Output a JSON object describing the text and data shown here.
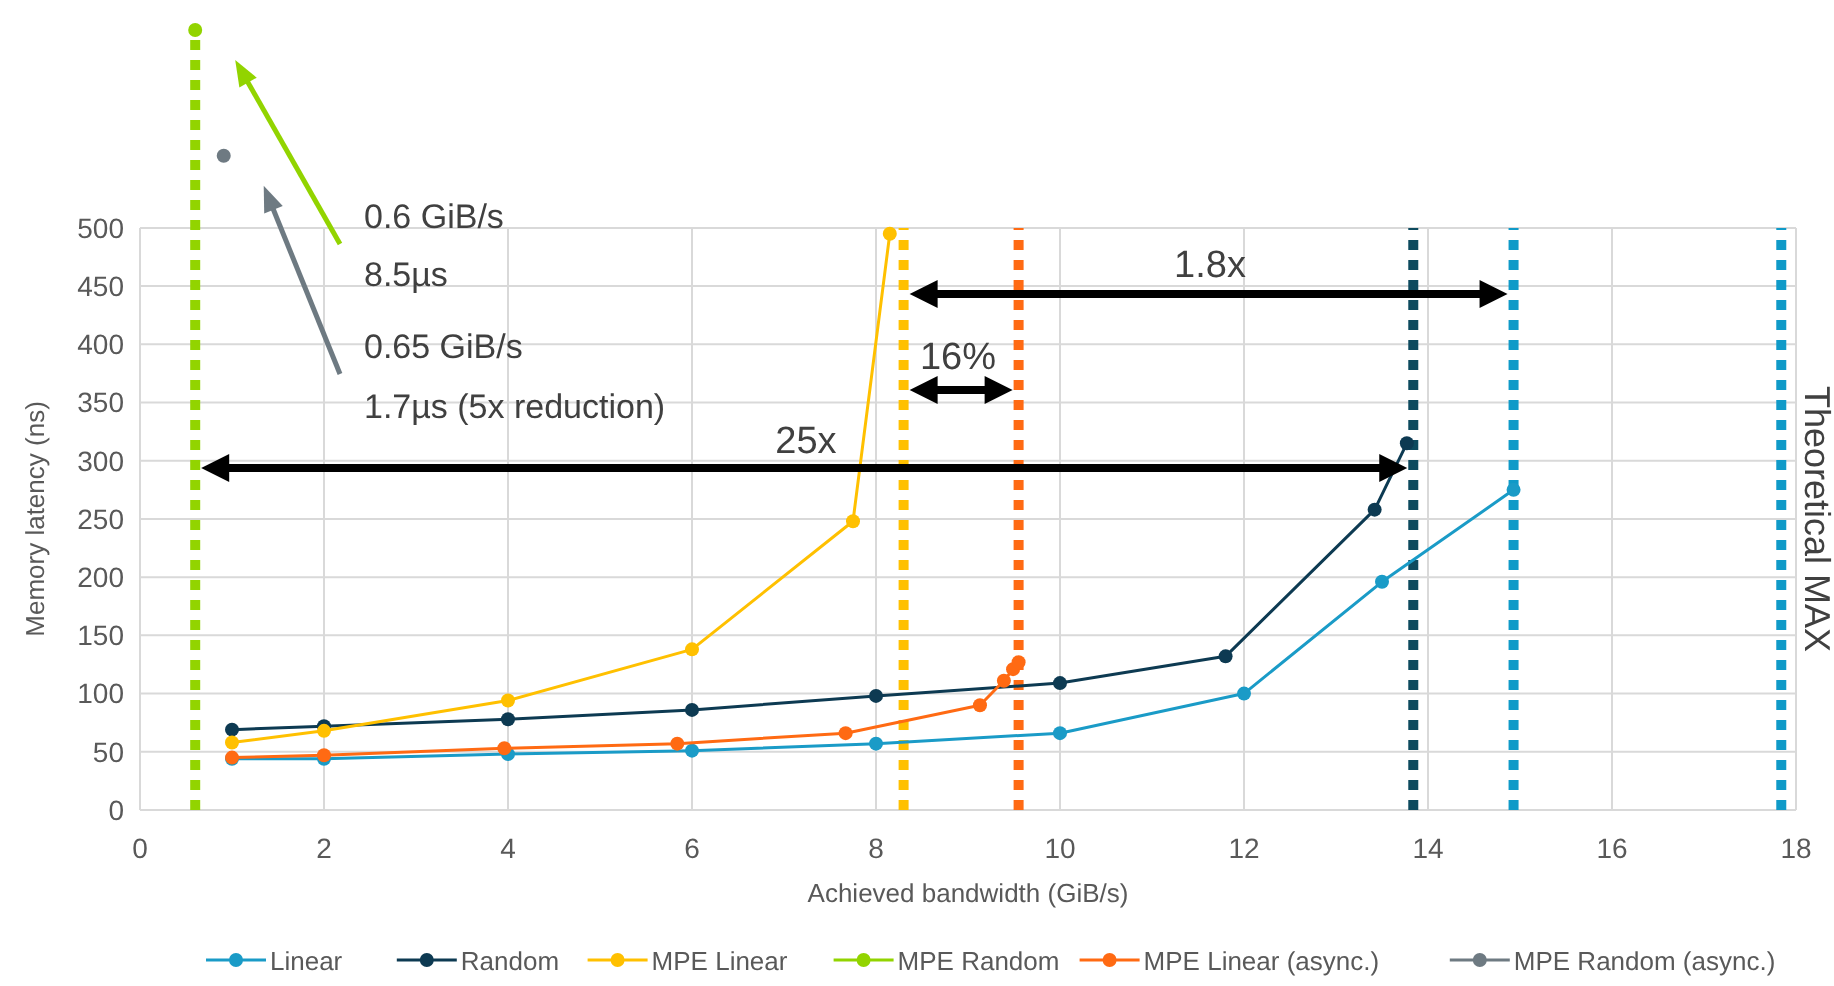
{
  "chart_data": {
    "type": "line",
    "xlabel": "Achieved bandwidth (GiB/s)",
    "ylabel": "Memory latency (ns)",
    "xlim": [
      0,
      18
    ],
    "xticks": [
      0,
      2,
      4,
      6,
      8,
      10,
      12,
      14,
      16,
      18
    ],
    "ylim": [
      0,
      670
    ],
    "yticks": [
      0,
      50,
      100,
      150,
      200,
      250,
      300,
      350,
      400,
      450,
      500
    ],
    "grid": true,
    "legend": "bottom",
    "marker": "circle",
    "line_style": "solid",
    "series": [
      {
        "name": "Linear",
        "color": "#1a9bc7",
        "x": [
          1,
          2,
          4,
          6,
          8,
          10,
          12,
          13.5,
          14.93
        ],
        "values": [
          44,
          44,
          48,
          51,
          57,
          66,
          100,
          196,
          275
        ]
      },
      {
        "name": "Random",
        "color": "#0d3a52",
        "x": [
          1,
          2,
          4,
          6,
          8,
          10,
          11.8,
          13.42,
          13.77
        ],
        "values": [
          69,
          72,
          78,
          86,
          98,
          109,
          132,
          258,
          315
        ]
      },
      {
        "name": "MPE Linear",
        "color": "#ffc000",
        "x": [
          1,
          2,
          4,
          6,
          7.75,
          8.15
        ],
        "values": [
          58,
          68,
          94,
          138,
          248,
          495
        ]
      },
      {
        "name": "MPE Random",
        "color": "#92d400",
        "x": [
          0.6
        ],
        "values": [
          670
        ]
      },
      {
        "name": "MPE Linear (async.)",
        "color": "#ff6a13",
        "x": [
          1,
          2,
          3.96,
          5.84,
          7.67,
          9.13,
          9.39,
          9.49,
          9.55
        ],
        "values": [
          45,
          47,
          53,
          57,
          66,
          90,
          111,
          121,
          127
        ]
      },
      {
        "name": "MPE Random (async.)",
        "color": "#6e7a82",
        "x": [
          0.91
        ],
        "values": [
          562
        ]
      }
    ],
    "ref_lines": [
      {
        "axis": "x",
        "value": 0.6,
        "color": "#92d400",
        "line_style": "dotted"
      },
      {
        "axis": "x",
        "value": 8.3,
        "color": "#ffc000",
        "line_style": "dotted"
      },
      {
        "axis": "x",
        "value": 9.55,
        "color": "#ff6a13",
        "line_style": "dotted"
      },
      {
        "axis": "x",
        "value": 13.84,
        "color": "#0d4a5e",
        "line_style": "dotted"
      },
      {
        "axis": "x",
        "value": 14.93,
        "color": "#0f9ac8",
        "line_style": "dotted"
      },
      {
        "axis": "x",
        "value": 17.84,
        "color": "#0f9ac8",
        "line_style": "dotted",
        "label": "Theoretical MAX"
      }
    ],
    "annotations": [
      "0.6 GiB/s",
      "8.5µs",
      "0.65 GiB/s",
      "1.7µs (5x reduction)",
      "25x",
      "16%",
      "1.8x"
    ]
  }
}
